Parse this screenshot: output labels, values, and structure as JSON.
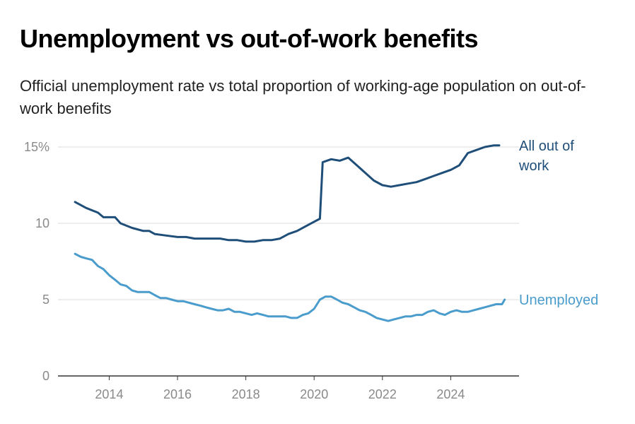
{
  "title": "Unemployment vs out-of-work benefits",
  "subtitle": "Official unemployment rate vs total proportion of working-age population on out-of-work benefits",
  "colors": {
    "all_out_of_work": "#1f4e79",
    "unemployed": "#4a9ccc",
    "grid": "#dddddd",
    "axis": "#333333",
    "tick": "#8a8a8a"
  },
  "chart_data": {
    "type": "line",
    "title": "Unemployment vs out-of-work benefits",
    "xlabel": "",
    "ylabel": "",
    "xlim": [
      2012.5,
      2026.0
    ],
    "ylim": [
      0,
      15
    ],
    "y_ticks": [
      {
        "value": 0,
        "label": "0"
      },
      {
        "value": 5,
        "label": "5"
      },
      {
        "value": 10,
        "label": "10"
      },
      {
        "value": 15,
        "label": "15%"
      }
    ],
    "x_ticks": [
      2014,
      2016,
      2018,
      2020,
      2022,
      2024
    ],
    "grid": "horizontal",
    "series": [
      {
        "name": "All out of work",
        "label_lines": [
          "All out of",
          "work"
        ],
        "color": "#1f4e79",
        "x": [
          2013.0,
          2013.33,
          2013.67,
          2013.83,
          2014.0,
          2014.17,
          2014.33,
          2014.67,
          2015.0,
          2015.17,
          2015.33,
          2015.67,
          2016.0,
          2016.25,
          2016.5,
          2016.75,
          2017.0,
          2017.25,
          2017.5,
          2017.75,
          2018.0,
          2018.25,
          2018.5,
          2018.75,
          2019.0,
          2019.25,
          2019.5,
          2019.75,
          2020.0,
          2020.17,
          2020.25,
          2020.5,
          2020.75,
          2021.0,
          2021.25,
          2021.5,
          2021.75,
          2022.0,
          2022.25,
          2022.5,
          2022.75,
          2023.0,
          2023.25,
          2023.5,
          2023.75,
          2024.0,
          2024.25,
          2024.5,
          2024.75,
          2025.0,
          2025.25,
          2025.42
        ],
        "values": [
          11.4,
          11.0,
          10.7,
          10.4,
          10.4,
          10.4,
          10.0,
          9.7,
          9.5,
          9.5,
          9.3,
          9.2,
          9.1,
          9.1,
          9.0,
          9.0,
          9.0,
          9.0,
          8.9,
          8.9,
          8.8,
          8.8,
          8.9,
          8.9,
          9.0,
          9.3,
          9.5,
          9.8,
          10.1,
          10.3,
          14.0,
          14.2,
          14.1,
          14.3,
          13.8,
          13.3,
          12.8,
          12.5,
          12.4,
          12.5,
          12.6,
          12.7,
          12.9,
          13.1,
          13.3,
          13.5,
          13.8,
          14.6,
          14.8,
          15.0,
          15.1,
          15.1
        ]
      },
      {
        "name": "Unemployed",
        "label_lines": [
          "Unemployed"
        ],
        "color": "#4a9ccc",
        "x": [
          2013.0,
          2013.17,
          2013.33,
          2013.5,
          2013.67,
          2013.83,
          2014.0,
          2014.17,
          2014.33,
          2014.5,
          2014.67,
          2014.83,
          2015.0,
          2015.17,
          2015.33,
          2015.5,
          2015.67,
          2015.83,
          2016.0,
          2016.17,
          2016.33,
          2016.5,
          2016.67,
          2016.83,
          2017.0,
          2017.17,
          2017.33,
          2017.5,
          2017.67,
          2017.83,
          2018.0,
          2018.17,
          2018.33,
          2018.5,
          2018.67,
          2018.83,
          2019.0,
          2019.17,
          2019.33,
          2019.5,
          2019.67,
          2019.83,
          2020.0,
          2020.17,
          2020.33,
          2020.5,
          2020.67,
          2020.83,
          2021.0,
          2021.17,
          2021.33,
          2021.5,
          2021.67,
          2021.83,
          2022.0,
          2022.17,
          2022.33,
          2022.5,
          2022.67,
          2022.83,
          2023.0,
          2023.17,
          2023.33,
          2023.5,
          2023.67,
          2023.83,
          2024.0,
          2024.17,
          2024.33,
          2024.5,
          2024.67,
          2024.83,
          2025.0,
          2025.17,
          2025.33,
          2025.5,
          2025.58
        ],
        "values": [
          8.0,
          7.8,
          7.7,
          7.6,
          7.2,
          7.0,
          6.6,
          6.3,
          6.0,
          5.9,
          5.6,
          5.5,
          5.5,
          5.5,
          5.3,
          5.1,
          5.1,
          5.0,
          4.9,
          4.9,
          4.8,
          4.7,
          4.6,
          4.5,
          4.4,
          4.3,
          4.3,
          4.4,
          4.2,
          4.2,
          4.1,
          4.0,
          4.1,
          4.0,
          3.9,
          3.9,
          3.9,
          3.9,
          3.8,
          3.8,
          4.0,
          4.1,
          4.4,
          5.0,
          5.2,
          5.2,
          5.0,
          4.8,
          4.7,
          4.5,
          4.3,
          4.2,
          4.0,
          3.8,
          3.7,
          3.6,
          3.7,
          3.8,
          3.9,
          3.9,
          4.0,
          4.0,
          4.2,
          4.3,
          4.1,
          4.0,
          4.2,
          4.3,
          4.2,
          4.2,
          4.3,
          4.4,
          4.5,
          4.6,
          4.7,
          4.7,
          5.0
        ]
      }
    ]
  }
}
